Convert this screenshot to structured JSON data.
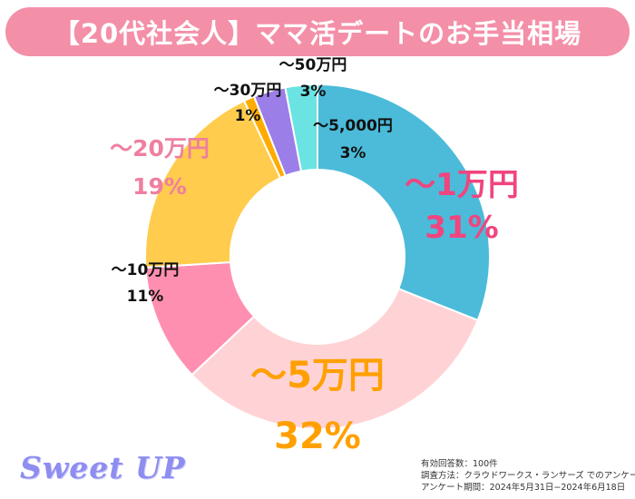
{
  "title": "【20代社会人】ママ活デートのお手当相場",
  "brand": "Sweet UP",
  "survey": {
    "respondents": "有効回答数：100件",
    "method": "調査方法：クラウドワークス・ランサーズ でのアンケート",
    "period": "アンケート期間：2024年5月31日−2024年6月18日"
  },
  "chart_data": {
    "type": "pie",
    "donut": true,
    "categories": [
      "～1万円",
      "～5万円",
      "～10万円",
      "～20万円",
      "～30万円",
      "～50万円",
      "～5,000円"
    ],
    "values": [
      31,
      32,
      11,
      19,
      1,
      3,
      3
    ],
    "labels": [
      "31%",
      "32%",
      "11%",
      "19%",
      "1%",
      "3%",
      "3%"
    ],
    "colors": [
      "#4bbbd9",
      "#ffd3d6",
      "#ff8fb0",
      "#ffcc4d",
      "#ffab00",
      "#9b7ee8",
      "#6be3e3"
    ],
    "label_colors": [
      "#f0457e",
      "#ffa000",
      "#111111",
      "#ef7fa0",
      "#111111",
      "#111111",
      "#111111"
    ]
  }
}
